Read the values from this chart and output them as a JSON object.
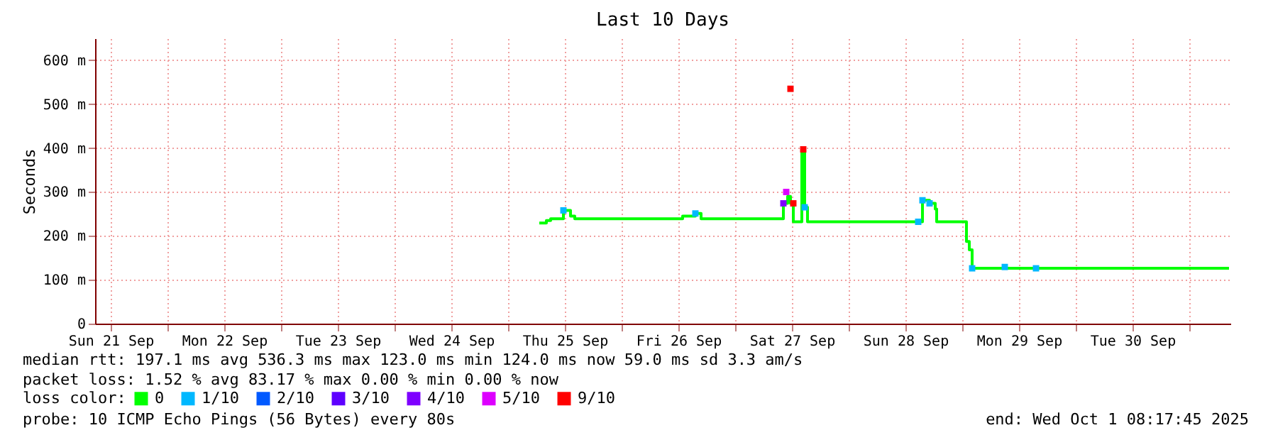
{
  "chart_data": {
    "type": "step",
    "title": "Last 10 Days",
    "ylabel": "Seconds",
    "legend_title": "loss color:",
    "legend": "bottom",
    "grid": true,
    "xlim": [
      "2025-09-21T08:42",
      "2025-10-01T08:42"
    ],
    "ylim": [
      0,
      650
    ],
    "yticks": [
      0,
      {
        "value": 100,
        "label": "100 m"
      },
      {
        "value": 200,
        "label": "200 m"
      },
      {
        "value": 300,
        "label": "300 m"
      },
      {
        "value": 400,
        "label": "400 m"
      },
      {
        "value": 500,
        "label": "500 m"
      },
      {
        "value": 600,
        "label": "600 m"
      }
    ],
    "xticks": [
      {
        "value": "2025-09-21T12:00",
        "label": "Sun 21 Sep"
      },
      {
        "value": "2025-09-22T00:00",
        "label": null
      },
      {
        "value": "2025-09-22T12:00",
        "label": "Mon 22 Sep"
      },
      {
        "value": "2025-09-23T00:00",
        "label": null
      },
      {
        "value": "2025-09-23T12:00",
        "label": "Tue 23 Sep"
      },
      {
        "value": "2025-09-24T00:00",
        "label": null
      },
      {
        "value": "2025-09-24T12:00",
        "label": "Wed 24 Sep"
      },
      {
        "value": "2025-09-25T00:00",
        "label": null
      },
      {
        "value": "2025-09-25T12:00",
        "label": "Thu 25 Sep"
      },
      {
        "value": "2025-09-26T00:00",
        "label": null
      },
      {
        "value": "2025-09-26T12:00",
        "label": "Fri 26 Sep"
      },
      {
        "value": "2025-09-27T00:00",
        "label": null
      },
      {
        "value": "2025-09-27T12:00",
        "label": "Sat 27 Sep"
      },
      {
        "value": "2025-09-28T00:00",
        "label": null
      },
      {
        "value": "2025-09-28T12:00",
        "label": "Sun 28 Sep"
      },
      {
        "value": "2025-09-29T00:00",
        "label": null
      },
      {
        "value": "2025-09-29T12:00",
        "label": "Mon 29 Sep"
      },
      {
        "value": "2025-09-30T00:00",
        "label": null
      },
      {
        "value": "2025-09-30T12:00",
        "label": "Tue 30 Sep"
      },
      {
        "value": "2025-10-01T00:00",
        "label": null
      }
    ],
    "series": [
      {
        "name": "0",
        "color": "#00ff00",
        "x": [
          "2025-09-25T06:36",
          "2025-09-25T08:06",
          "2025-09-25T09:00",
          "2025-09-25T11:42",
          "2025-09-25T13:12",
          "2025-09-25T14:06",
          "2025-09-26T12:00",
          "2025-09-26T12:54",
          "2025-09-26T15:36",
          "2025-09-26T16:48",
          "2025-09-27T09:36",
          "2025-09-27T10:12",
          "2025-09-27T11:06",
          "2025-09-27T11:42",
          "2025-09-27T12:18",
          "2025-09-27T13:30",
          "2025-09-27T14:06",
          "2025-09-27T14:42",
          "2025-09-27T15:18",
          "2025-09-28T14:42",
          "2025-09-28T15:36",
          "2025-09-28T17:06",
          "2025-09-28T18:18",
          "2025-09-28T18:36",
          "2025-09-29T00:36",
          "2025-09-29T00:54",
          "2025-09-29T01:30",
          "2025-09-29T02:06",
          "2025-10-01T08:24"
        ],
        "values": [
          229,
          235,
          239,
          258,
          245,
          239,
          239,
          245,
          251,
          239,
          239,
          274,
          290,
          274,
          232,
          232,
          397,
          265,
          232,
          232,
          281,
          274,
          261,
          232,
          232,
          187,
          168,
          126,
          126
        ]
      },
      {
        "name": "1/10",
        "type": "scatter",
        "marker": "square",
        "color": "#00b8ff",
        "x": [
          "2025-09-25T11:42",
          "2025-09-26T15:36",
          "2025-09-27T14:42",
          "2025-09-28T14:42",
          "2025-09-28T15:36",
          "2025-09-28T17:06",
          "2025-09-29T02:06",
          "2025-09-29T09:00",
          "2025-09-29T15:36"
        ],
        "values": [
          258,
          251,
          265,
          232,
          281,
          274,
          126,
          129,
          126
        ]
      },
      {
        "name": "2/10",
        "type": "scatter",
        "marker": "square",
        "color": "#0059ff"
      },
      {
        "name": "3/10",
        "type": "scatter",
        "marker": "square",
        "color": "#5e00ff"
      },
      {
        "name": "4/10",
        "type": "scatter",
        "marker": "square",
        "color": "#7e00ff",
        "x": [
          "2025-09-27T10:12"
        ],
        "values": [
          274
        ]
      },
      {
        "name": "5/10",
        "type": "scatter",
        "marker": "square",
        "color": "#dd00ff",
        "x": [
          "2025-09-27T10:48"
        ],
        "values": [
          300
        ]
      },
      {
        "name": "9/10",
        "type": "scatter",
        "marker": "square",
        "color": "#ff0000",
        "x": [
          "2025-09-27T11:42",
          "2025-09-27T12:18",
          "2025-09-27T14:24"
        ],
        "values": [
          535,
          274,
          397
        ]
      }
    ],
    "annotations": [
      "median rtt:  197.1 ms avg  536.3 ms max  123.0 ms min  124.0 ms now  59.0 ms sd  3.3   am/s",
      "packet loss: 1.52 % avg  83.17 % max  0.00 % min  0.00 % now",
      "probe:       10 ICMP Echo Pings (56 Bytes) every 80s",
      "end: Wed Oct  1 08:17:45 2025"
    ]
  }
}
